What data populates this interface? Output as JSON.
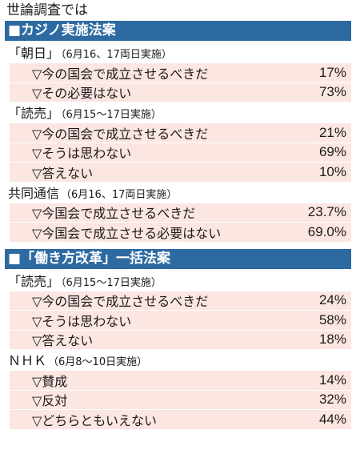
{
  "colors": {
    "section_bar": "#2d6aa1",
    "row_bg": "#fbe6e2"
  },
  "title": "世論調査では",
  "sections": [
    {
      "heading": "■カジノ実施法案",
      "groups": [
        {
          "source": "「朝日」",
          "note": "（6月16、17両日実施）",
          "rows": [
            {
              "label": "▽今の国会で成立させるべきだ",
              "value": "17%"
            },
            {
              "label": "▽その必要はない",
              "value": "73%"
            }
          ]
        },
        {
          "source": "「読売」",
          "note": "（6月15〜17日実施）",
          "rows": [
            {
              "label": "▽今の国会で成立させるべきだ",
              "value": "21%"
            },
            {
              "label": "▽そうは思わない",
              "value": "69%"
            },
            {
              "label": "▽答えない",
              "value": "10%"
            }
          ]
        },
        {
          "source": "共同通信",
          "note": "（6月16、17両日実施）",
          "rows": [
            {
              "label": "▽今国会で成立させるべきだ",
              "value": "23.7%"
            },
            {
              "label": "▽今国会で成立させる必要はない",
              "value": "69.0%"
            }
          ]
        }
      ]
    },
    {
      "heading": "■「働き方改革」一括法案",
      "groups": [
        {
          "source": "「読売」",
          "note": "（6月15〜17日実施）",
          "rows": [
            {
              "label": "▽今の国会で成立させるべきだ",
              "value": "24%"
            },
            {
              "label": "▽そうは思わない",
              "value": "58%"
            },
            {
              "label": "▽答えない",
              "value": "18%"
            }
          ]
        },
        {
          "source": "ＮＨＫ",
          "note": "（6月8〜10日実施）",
          "rows": [
            {
              "label": "▽賛成",
              "value": "14%"
            },
            {
              "label": "▽反対",
              "value": "32%"
            },
            {
              "label": "▽どちらともいえない",
              "value": "44%"
            }
          ]
        }
      ]
    }
  ]
}
